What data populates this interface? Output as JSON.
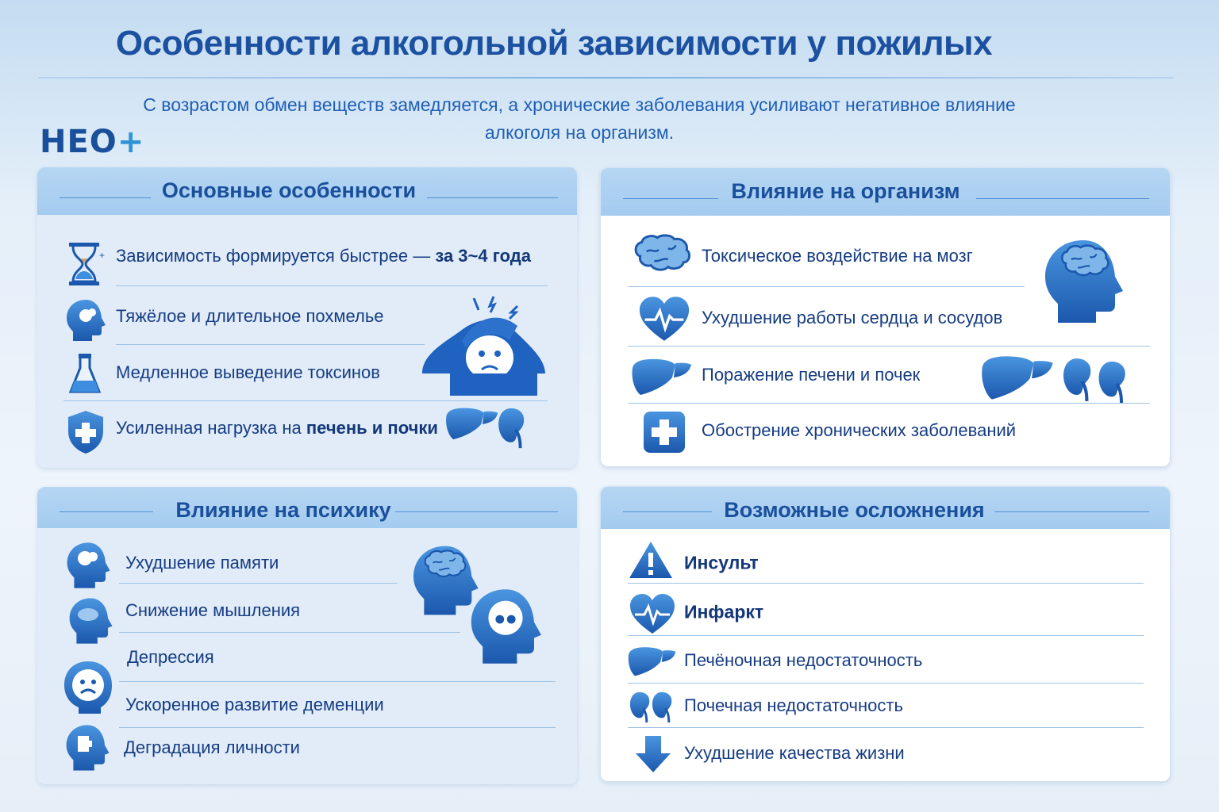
{
  "title": "Особенности алкогольной зависимости у пожилых",
  "subtitle_line1": "С возрастом обмен веществ замедляется, а хронические заболевания усиливают негативное влияние",
  "subtitle_line2": "алкоголя на организм.",
  "logo": {
    "text": "НЕО",
    "plus": "+"
  },
  "colors": {
    "primary": "#1c50a0",
    "accent": "#2f7fd0",
    "header_bg": "#a3cbef",
    "panel_bg": "#e1ecf8"
  },
  "main_features": {
    "title": "Основные особенности",
    "items": [
      {
        "text": "Зависимость формируется быстрее — ",
        "bold": "за 3~4 года",
        "icon": "hourglass-icon"
      },
      {
        "text": "Тяжёлое и длительное похмелье",
        "bold": "",
        "icon": "head-icon"
      },
      {
        "text": "Медленное выведение токсинов",
        "bold": "",
        "icon": "flask-icon"
      },
      {
        "text": "Усиленная нагрузка на ",
        "bold": "печень и почки",
        "icon": "shield-plus-icon"
      }
    ]
  },
  "body_impact": {
    "title": "Влияние на организм",
    "items": [
      {
        "text": "Токсическое воздействие на мозг",
        "icon": "brain-icon"
      },
      {
        "text": "Ухудшение работы сердца и сосудов",
        "icon": "heart-pulse-icon"
      },
      {
        "text": "Поражение печени и почек",
        "icon": "liver-icon"
      },
      {
        "text": "Обострение хронических заболеваний",
        "icon": "medical-cross-icon"
      }
    ]
  },
  "psyche_impact": {
    "title": "Влияние на психику",
    "items": [
      {
        "text": "Ухудшение памяти",
        "icon": "head-memory-icon"
      },
      {
        "text": "Снижение мышления",
        "icon": "head-cloud-icon"
      },
      {
        "text": "Депрессия",
        "icon": "sad-face-icon"
      },
      {
        "text": "Ускоренное развитие деменции",
        "icon": ""
      },
      {
        "text": "Деградация личности",
        "icon": "head-puzzle-icon"
      }
    ]
  },
  "complications": {
    "title": "Возможные осложнения",
    "items": [
      {
        "text": "Инсульт",
        "bold": true,
        "icon": "warning-icon"
      },
      {
        "text": "Инфаркт",
        "bold": true,
        "icon": "heart-pulse-icon"
      },
      {
        "text": "Печёночная недостаточность",
        "bold": false,
        "icon": "liver-icon"
      },
      {
        "text": "Почечная недостаточность",
        "bold": false,
        "icon": "kidneys-icon"
      },
      {
        "text": "Ухудшение качества жизни",
        "bold": false,
        "icon": "arrow-down-icon"
      }
    ]
  }
}
